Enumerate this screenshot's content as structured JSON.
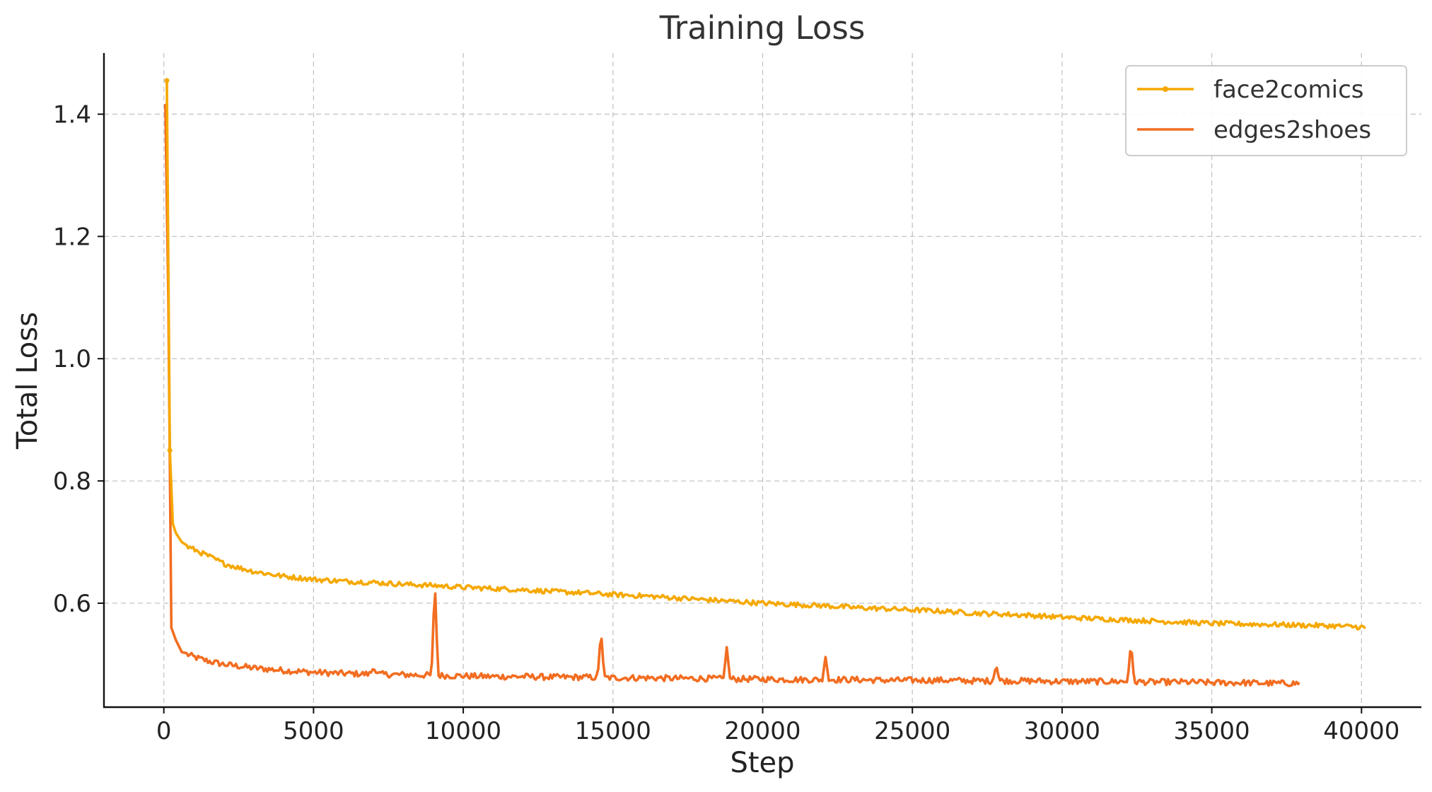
{
  "chart_data": {
    "type": "line",
    "title": "Training Loss",
    "xlabel": "Step",
    "ylabel": "Total Loss",
    "xlim": [
      -2000,
      42000
    ],
    "ylim": [
      0.43,
      1.5
    ],
    "xticks": [
      0,
      5000,
      10000,
      15000,
      20000,
      25000,
      30000,
      35000,
      40000
    ],
    "xtick_labels": [
      "0",
      "5000",
      "10000",
      "15000",
      "20000",
      "25000",
      "30000",
      "35000",
      "40000"
    ],
    "yticks": [
      0.6,
      0.8,
      1.0,
      1.2,
      1.4
    ],
    "ytick_labels": [
      "0.6",
      "0.8",
      "1.0",
      "1.2",
      "1.4"
    ],
    "grid": true,
    "legend_position": "top-right",
    "series": [
      {
        "name": "face2comics",
        "color": "#f5a800",
        "marker": "dot",
        "trend": [
          [
            100,
            1.455
          ],
          [
            200,
            0.85
          ],
          [
            300,
            0.73
          ],
          [
            400,
            0.715
          ],
          [
            600,
            0.7
          ],
          [
            800,
            0.692
          ],
          [
            1000,
            0.688
          ],
          [
            1500,
            0.677
          ],
          [
            2000,
            0.665
          ],
          [
            2500,
            0.658
          ],
          [
            3000,
            0.652
          ],
          [
            4000,
            0.644
          ],
          [
            5000,
            0.639
          ],
          [
            6000,
            0.636
          ],
          [
            7000,
            0.634
          ],
          [
            8000,
            0.631
          ],
          [
            9000,
            0.629
          ],
          [
            10000,
            0.626
          ],
          [
            11000,
            0.624
          ],
          [
            12000,
            0.622
          ],
          [
            13000,
            0.619
          ],
          [
            14000,
            0.617
          ],
          [
            15000,
            0.614
          ],
          [
            16000,
            0.612
          ],
          [
            17000,
            0.609
          ],
          [
            18000,
            0.606
          ],
          [
            19000,
            0.603
          ],
          [
            20000,
            0.6
          ],
          [
            21000,
            0.598
          ],
          [
            22000,
            0.596
          ],
          [
            23000,
            0.593
          ],
          [
            24000,
            0.591
          ],
          [
            25000,
            0.589
          ],
          [
            26000,
            0.587
          ],
          [
            27000,
            0.584
          ],
          [
            28000,
            0.582
          ],
          [
            29000,
            0.58
          ],
          [
            30000,
            0.577
          ],
          [
            31000,
            0.575
          ],
          [
            32000,
            0.573
          ],
          [
            33000,
            0.571
          ],
          [
            34000,
            0.569
          ],
          [
            35000,
            0.567
          ],
          [
            36000,
            0.566
          ],
          [
            37000,
            0.565
          ],
          [
            38000,
            0.564
          ],
          [
            39000,
            0.563
          ],
          [
            40000,
            0.561
          ],
          [
            40100,
            0.56
          ]
        ],
        "noise": 0.004,
        "spikes": []
      },
      {
        "name": "edges2shoes",
        "color": "#f26d21",
        "marker": "none",
        "trend": [
          [
            50,
            1.415
          ],
          [
            150,
            1.1
          ],
          [
            250,
            0.56
          ],
          [
            400,
            0.54
          ],
          [
            600,
            0.52
          ],
          [
            1000,
            0.512
          ],
          [
            1500,
            0.505
          ],
          [
            2000,
            0.5
          ],
          [
            3000,
            0.494
          ],
          [
            4000,
            0.49
          ],
          [
            5000,
            0.487
          ],
          [
            6000,
            0.485
          ],
          [
            7000,
            0.484
          ],
          [
            8000,
            0.483
          ],
          [
            9000,
            0.482
          ],
          [
            10000,
            0.481
          ],
          [
            11000,
            0.48
          ],
          [
            12000,
            0.48
          ],
          [
            13000,
            0.479
          ],
          [
            14000,
            0.479
          ],
          [
            15000,
            0.478
          ],
          [
            16000,
            0.478
          ],
          [
            17000,
            0.477
          ],
          [
            18000,
            0.477
          ],
          [
            19000,
            0.476
          ],
          [
            20000,
            0.476
          ],
          [
            21000,
            0.475
          ],
          [
            22000,
            0.475
          ],
          [
            23000,
            0.475
          ],
          [
            24000,
            0.474
          ],
          [
            25000,
            0.474
          ],
          [
            26000,
            0.474
          ],
          [
            27000,
            0.473
          ],
          [
            28000,
            0.473
          ],
          [
            29000,
            0.473
          ],
          [
            30000,
            0.472
          ],
          [
            31000,
            0.472
          ],
          [
            32000,
            0.472
          ],
          [
            33000,
            0.471
          ],
          [
            34000,
            0.471
          ],
          [
            35000,
            0.47
          ],
          [
            36000,
            0.47
          ],
          [
            37000,
            0.469
          ],
          [
            37900,
            0.469
          ]
        ],
        "noise": 0.005,
        "spikes": [
          [
            9050,
            0.637
          ],
          [
            14600,
            0.556
          ],
          [
            18800,
            0.528
          ],
          [
            22100,
            0.512
          ],
          [
            27800,
            0.499
          ],
          [
            32300,
            0.536
          ],
          [
            7000,
            0.494
          ]
        ]
      }
    ]
  }
}
